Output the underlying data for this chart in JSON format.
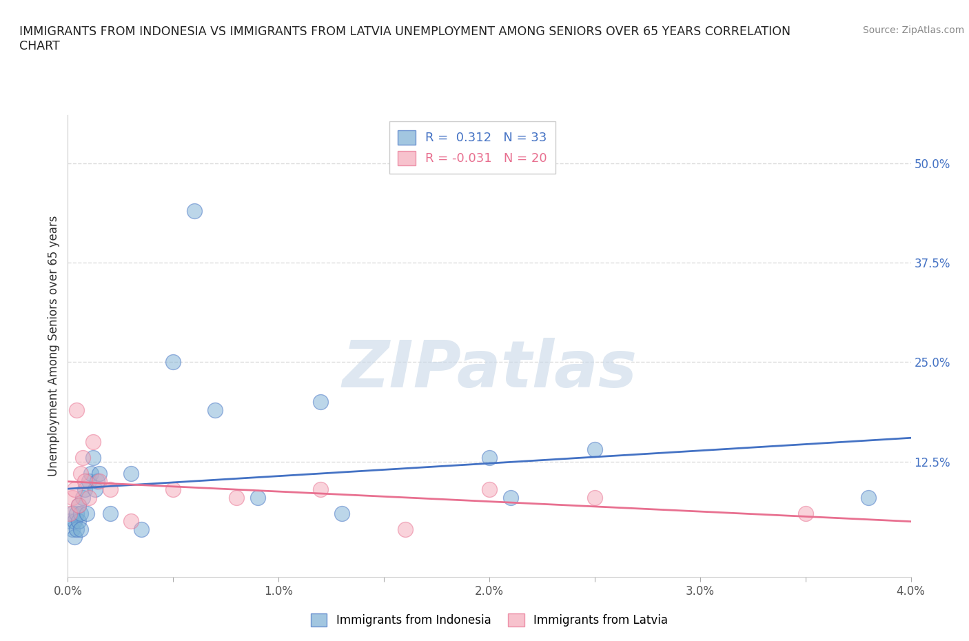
{
  "title": "IMMIGRANTS FROM INDONESIA VS IMMIGRANTS FROM LATVIA UNEMPLOYMENT AMONG SENIORS OVER 65 YEARS CORRELATION\nCHART",
  "source": "Source: ZipAtlas.com",
  "xlabel": "",
  "ylabel": "Unemployment Among Seniors over 65 years",
  "xlim": [
    0.0,
    0.04
  ],
  "ylim": [
    -0.02,
    0.56
  ],
  "xticks": [
    0.0,
    0.005,
    0.01,
    0.015,
    0.02,
    0.025,
    0.03,
    0.035,
    0.04
  ],
  "xticklabels": [
    "0.0%",
    "",
    "1.0%",
    "",
    "2.0%",
    "",
    "3.0%",
    "",
    "4.0%"
  ],
  "yticks_right": [
    0.0,
    0.125,
    0.25,
    0.375,
    0.5
  ],
  "yticklabels_right": [
    "",
    "12.5%",
    "25.0%",
    "37.5%",
    "50.0%"
  ],
  "grid_color": "#dddddd",
  "watermark": "ZIPatlas",
  "watermark_color": "#c8d8e8",
  "color_indonesia": "#7bafd4",
  "color_latvia": "#f4a8b8",
  "color_trend_indonesia": "#4472c4",
  "color_trend_latvia": "#e87090",
  "indonesia_x": [
    0.0001,
    0.0002,
    0.0002,
    0.0003,
    0.0003,
    0.0004,
    0.0004,
    0.0005,
    0.0005,
    0.0006,
    0.0006,
    0.0007,
    0.0008,
    0.0009,
    0.001,
    0.0011,
    0.0012,
    0.0013,
    0.0014,
    0.0015,
    0.002,
    0.003,
    0.0035,
    0.005,
    0.006,
    0.007,
    0.009,
    0.012,
    0.013,
    0.02,
    0.021,
    0.025,
    0.038
  ],
  "indonesia_y": [
    0.05,
    0.06,
    0.04,
    0.05,
    0.03,
    0.06,
    0.04,
    0.07,
    0.05,
    0.06,
    0.04,
    0.08,
    0.09,
    0.06,
    0.1,
    0.11,
    0.13,
    0.09,
    0.1,
    0.11,
    0.06,
    0.11,
    0.04,
    0.25,
    0.44,
    0.19,
    0.08,
    0.2,
    0.06,
    0.13,
    0.08,
    0.14,
    0.08
  ],
  "latvia_x": [
    0.0001,
    0.0002,
    0.0003,
    0.0004,
    0.0005,
    0.0006,
    0.0007,
    0.0008,
    0.001,
    0.0012,
    0.0015,
    0.002,
    0.003,
    0.005,
    0.008,
    0.012,
    0.016,
    0.02,
    0.025,
    0.035
  ],
  "latvia_y": [
    0.06,
    0.08,
    0.09,
    0.19,
    0.07,
    0.11,
    0.13,
    0.1,
    0.08,
    0.15,
    0.1,
    0.09,
    0.05,
    0.09,
    0.08,
    0.09,
    0.04,
    0.09,
    0.08,
    0.06
  ]
}
